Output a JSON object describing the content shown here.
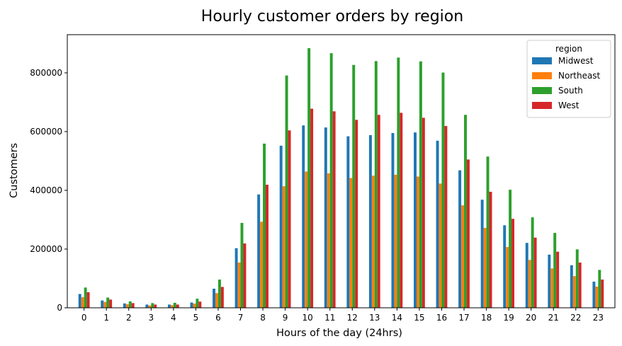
{
  "chart_data": {
    "type": "bar",
    "title": "Hourly customer orders by region",
    "xlabel": "Hours of the day (24hrs)",
    "ylabel": "Customers",
    "ylim": [
      0,
      930000
    ],
    "yticks": [
      0,
      200000,
      400000,
      600000,
      800000
    ],
    "grid": false,
    "legend_title": "region",
    "legend_position": "top-right",
    "categories": [
      "0",
      "1",
      "2",
      "3",
      "4",
      "5",
      "6",
      "7",
      "8",
      "9",
      "10",
      "11",
      "12",
      "13",
      "14",
      "15",
      "16",
      "17",
      "18",
      "19",
      "20",
      "21",
      "22",
      "23"
    ],
    "series": [
      {
        "name": "Midwest",
        "color": "#1f77b4",
        "values": [
          47000,
          25000,
          15000,
          11000,
          11000,
          18000,
          65000,
          203000,
          386000,
          552000,
          621000,
          614000,
          584000,
          588000,
          595000,
          597000,
          569000,
          468000,
          368000,
          281000,
          221000,
          181000,
          145000,
          89000
        ]
      },
      {
        "name": "Northeast",
        "color": "#ff7f0e",
        "values": [
          36000,
          20000,
          12000,
          8000,
          9000,
          14000,
          50000,
          154000,
          293000,
          414000,
          464000,
          458000,
          442000,
          450000,
          453000,
          447000,
          423000,
          349000,
          272000,
          207000,
          163000,
          134000,
          108000,
          72000
        ]
      },
      {
        "name": "South",
        "color": "#2ca02c",
        "values": [
          69000,
          35000,
          22000,
          16000,
          17000,
          31000,
          96000,
          289000,
          559000,
          791000,
          884000,
          867000,
          827000,
          840000,
          852000,
          839000,
          801000,
          657000,
          515000,
          402000,
          308000,
          255000,
          199000,
          129000
        ]
      },
      {
        "name": "West",
        "color": "#d62728",
        "values": [
          53000,
          28000,
          16000,
          11000,
          11000,
          21000,
          71000,
          219000,
          419000,
          604000,
          678000,
          669000,
          640000,
          657000,
          664000,
          647000,
          619000,
          505000,
          395000,
          303000,
          239000,
          191000,
          154000,
          96000
        ]
      }
    ]
  }
}
